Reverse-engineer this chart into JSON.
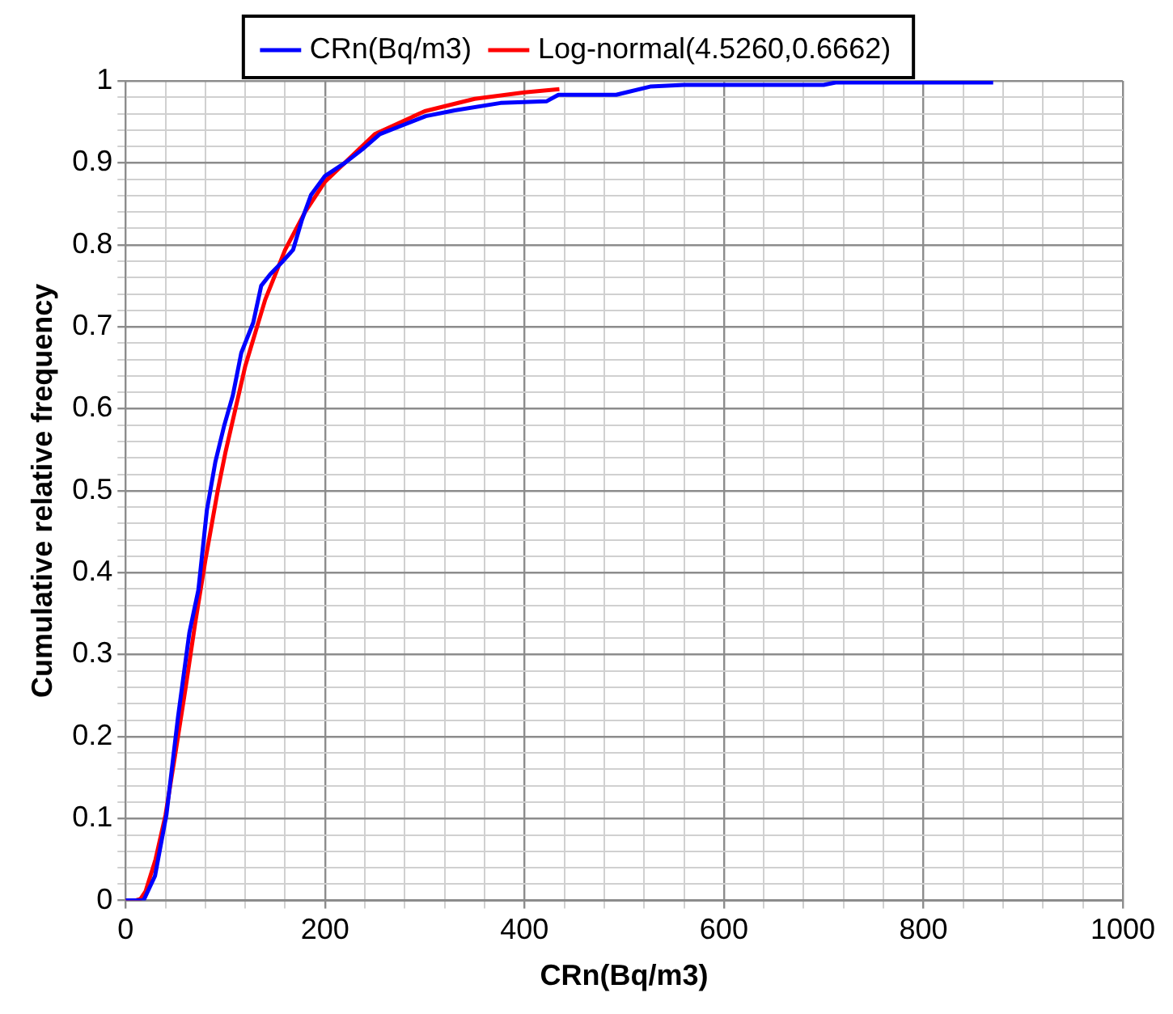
{
  "chart_data": {
    "type": "line",
    "xlabel": "CRn(Bq/m3)",
    "ylabel": "Cumulative relative frequency",
    "xlim": [
      0,
      1000
    ],
    "ylim": [
      0,
      1
    ],
    "xticks": [
      0,
      {
        "value": 40,
        "label": null
      },
      {
        "value": 80,
        "label": null
      },
      {
        "value": 120,
        "label": null
      },
      {
        "value": 160,
        "label": null
      },
      200,
      {
        "value": 240,
        "label": null
      },
      {
        "value": 280,
        "label": null
      },
      {
        "value": 320,
        "label": null
      },
      {
        "value": 360,
        "label": null
      },
      400,
      {
        "value": 440,
        "label": null
      },
      {
        "value": 480,
        "label": null
      },
      {
        "value": 520,
        "label": null
      },
      {
        "value": 560,
        "label": null
      },
      600,
      {
        "value": 640,
        "label": null
      },
      {
        "value": 680,
        "label": null
      },
      {
        "value": 720,
        "label": null
      },
      {
        "value": 760,
        "label": null
      },
      800,
      {
        "value": 840,
        "label": null
      },
      {
        "value": 880,
        "label": null
      },
      {
        "value": 920,
        "label": null
      },
      {
        "value": 960,
        "label": null
      },
      1000
    ],
    "yticks": [
      0,
      {
        "value": 0.02,
        "label": null
      },
      {
        "value": 0.04,
        "label": null
      },
      {
        "value": 0.06,
        "label": null
      },
      {
        "value": 0.08,
        "label": null
      },
      0.1,
      {
        "value": 0.12,
        "label": null
      },
      {
        "value": 0.14,
        "label": null
      },
      {
        "value": 0.16,
        "label": null
      },
      {
        "value": 0.18,
        "label": null
      },
      0.2,
      {
        "value": 0.22,
        "label": null
      },
      {
        "value": 0.24,
        "label": null
      },
      {
        "value": 0.26,
        "label": null
      },
      {
        "value": 0.28,
        "label": null
      },
      0.3,
      {
        "value": 0.32,
        "label": null
      },
      {
        "value": 0.34,
        "label": null
      },
      {
        "value": 0.36,
        "label": null
      },
      {
        "value": 0.38,
        "label": null
      },
      0.4,
      {
        "value": 0.42,
        "label": null
      },
      {
        "value": 0.44,
        "label": null
      },
      {
        "value": 0.46,
        "label": null
      },
      {
        "value": 0.48,
        "label": null
      },
      0.5,
      {
        "value": 0.52,
        "label": null
      },
      {
        "value": 0.54,
        "label": null
      },
      {
        "value": 0.56,
        "label": null
      },
      {
        "value": 0.58,
        "label": null
      },
      0.6,
      {
        "value": 0.62,
        "label": null
      },
      {
        "value": 0.64,
        "label": null
      },
      {
        "value": 0.66,
        "label": null
      },
      {
        "value": 0.68,
        "label": null
      },
      0.7,
      {
        "value": 0.72,
        "label": null
      },
      {
        "value": 0.74,
        "label": null
      },
      {
        "value": 0.76,
        "label": null
      },
      {
        "value": 0.78,
        "label": null
      },
      0.8,
      {
        "value": 0.82,
        "label": null
      },
      {
        "value": 0.84,
        "label": null
      },
      {
        "value": 0.86,
        "label": null
      },
      {
        "value": 0.88,
        "label": null
      },
      0.9,
      {
        "value": 0.92,
        "label": null
      },
      {
        "value": 0.94,
        "label": null
      },
      {
        "value": 0.96,
        "label": null
      },
      {
        "value": 0.98,
        "label": null
      },
      1
    ],
    "grid": true,
    "legend": "top",
    "marker": "none",
    "line_style": "solid",
    "series": [
      {
        "name": "CRn(Bq/m3)",
        "color": "#0000ff",
        "x": [
          0,
          18,
          29.5,
          41,
          52.6,
          64,
          73,
          81.5,
          90,
          98.8,
          107.5,
          116,
          128,
          136,
          145,
          157,
          168,
          177,
          186,
          200,
          220,
          237,
          255,
          278,
          301,
          330,
          376,
          422,
          434,
          492,
          526,
          560,
          700,
          712,
          870
        ],
        "values": [
          0,
          0,
          0.03,
          0.105,
          0.224,
          0.327,
          0.379,
          0.476,
          0.535,
          0.579,
          0.616,
          0.668,
          0.705,
          0.75,
          0.764,
          0.779,
          0.794,
          0.831,
          0.861,
          0.884,
          0.9,
          0.916,
          0.935,
          0.946,
          0.957,
          0.964,
          0.973,
          0.975,
          0.983,
          0.983,
          0.993,
          0.995,
          0.995,
          0.998,
          0.998
        ]
      },
      {
        "name": "Log-normal(4.5260,0.6662)",
        "color": "#ff0000",
        "x": [
          0,
          10,
          15,
          20,
          30,
          40,
          50,
          60,
          70,
          80,
          92.4,
          100,
          120,
          140,
          160,
          180,
          200,
          250,
          300,
          350,
          400,
          435
        ],
        "values": [
          0,
          0,
          0.002,
          0.011,
          0.05,
          0.104,
          0.18,
          0.258,
          0.34,
          0.415,
          0.5,
          0.546,
          0.652,
          0.733,
          0.794,
          0.84,
          0.877,
          0.935,
          0.963,
          0.978,
          0.986,
          0.99
        ]
      }
    ]
  }
}
